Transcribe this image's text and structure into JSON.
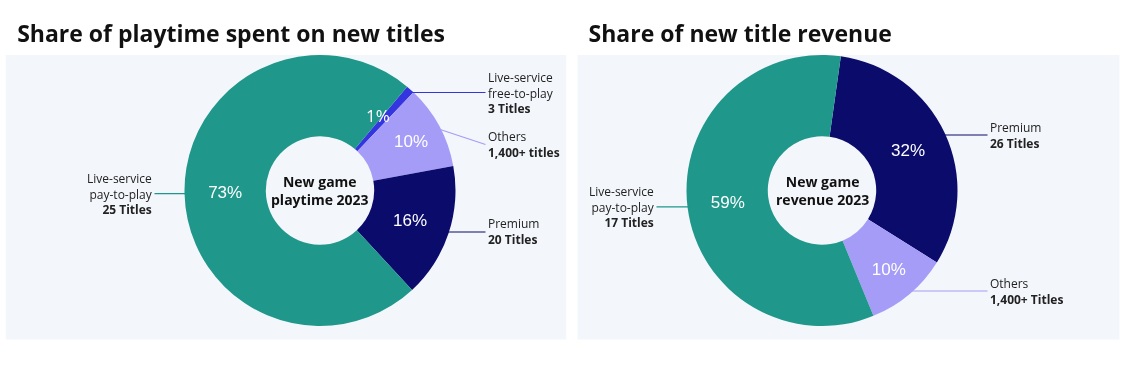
{
  "chart_data": [
    {
      "type": "donut",
      "title": "Share of playtime spent on new titles",
      "categories": [
        "Live-service free-to-play",
        "Others",
        "Premium",
        "Live-service pay-to-play"
      ],
      "values": [
        1,
        10,
        16,
        73
      ],
      "colors": [
        "#3535e0",
        "#a59cf7",
        "#0b0b6b",
        "#1f978a"
      ],
      "value_labels": [
        "1%",
        "10%",
        "16%",
        "73%"
      ],
      "annotations": [
        "New game playtime 2023",
        "3 Titles",
        "1,400+ titles",
        "20 Titles",
        "25 Titles"
      ]
    },
    {
      "type": "donut",
      "title": "Share of new title revenue",
      "categories": [
        "Premium",
        "Others",
        "Live-service pay-to-play"
      ],
      "values": [
        32,
        10,
        59
      ],
      "colors": [
        "#0b0b6b",
        "#a59cf7",
        "#1f978a"
      ],
      "value_labels": [
        "32%",
        "10%",
        "59%"
      ],
      "annotations": [
        "New game revenue 2023",
        "26 Titles",
        "1,400+ Titles",
        "17 Titles"
      ]
    }
  ]
}
